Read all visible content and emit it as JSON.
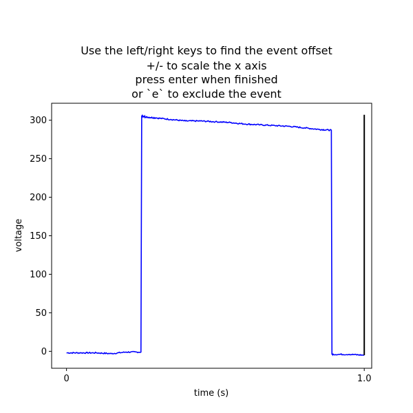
{
  "figure": {
    "title_lines": [
      "Use the left/right keys to find the event offset",
      "+/- to scale the x axis",
      "press enter when finished",
      "or `e` to exclude the event"
    ]
  },
  "chart_data": {
    "type": "line",
    "title": "Use the left/right keys to find the event offset\n+/- to scale the x axis\npress enter when finished\nor `e` to exclude the event",
    "xlabel": "time (s)",
    "ylabel": "voltage",
    "xlim": [
      -0.05,
      1.025
    ],
    "ylim": [
      -22,
      322
    ],
    "x_ticks": [
      0,
      1.0
    ],
    "x_tick_labels": [
      "0",
      "1.0"
    ],
    "y_ticks": [
      0,
      50,
      100,
      150,
      200,
      250,
      300
    ],
    "y_tick_labels": [
      "0",
      "50",
      "100",
      "150",
      "200",
      "250",
      "300"
    ],
    "grid": false,
    "colors": {
      "signal": "#0000ff",
      "offset_marker": "#000000"
    },
    "series": [
      {
        "x": [
          0.0,
          0.05,
          0.1,
          0.15,
          0.2,
          0.25,
          0.2525,
          0.2545,
          0.27,
          0.3,
          0.35,
          0.4,
          0.45,
          0.5,
          0.55,
          0.6,
          0.65,
          0.7,
          0.75,
          0.8,
          0.85,
          0.8895,
          0.8915,
          0.895,
          0.95,
          1.0
        ],
        "values": [
          -2,
          -2,
          -2,
          -3,
          -1,
          -1,
          305,
          305,
          304,
          303,
          301,
          299,
          299,
          298,
          297,
          295,
          294,
          293,
          292,
          290,
          288,
          287,
          -4,
          -4,
          -4,
          -5
        ]
      }
    ],
    "vlines": [
      {
        "x": 1.0,
        "y_from": -5,
        "y_to": 307
      }
    ]
  }
}
